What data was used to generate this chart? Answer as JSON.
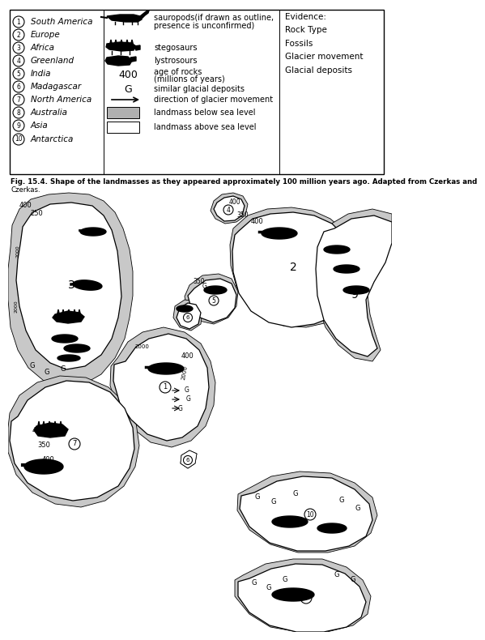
{
  "legend_numbered": [
    [
      1,
      "South America"
    ],
    [
      2,
      "Europe"
    ],
    [
      3,
      "Africa"
    ],
    [
      4,
      "Greenland"
    ],
    [
      5,
      "India"
    ],
    [
      6,
      "Madagascar"
    ],
    [
      7,
      "North America"
    ],
    [
      8,
      "Australia"
    ],
    [
      9,
      "Asia"
    ],
    [
      10,
      "Antarctica"
    ]
  ],
  "evidence_text": "Evidence:\nRock Type\nFossils\nGlacier movement\nGlacial deposits",
  "fig_caption_line1": "Fig. 15.4. Shape of the landmasses as they appeared approximately 100 million years ago. Adapted from Czerkas and",
  "fig_caption_line2": "Czerkas.",
  "bg_color": "#ffffff",
  "sea_color": "#c8c8c8",
  "land_color": "#ffffff",
  "border_color": "#000000"
}
